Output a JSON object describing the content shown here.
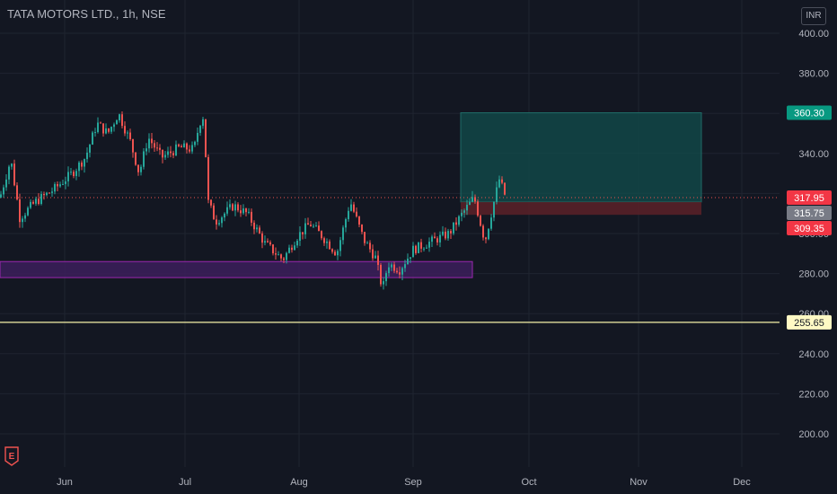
{
  "header": {
    "symbol_title": "TATA MOTORS LTD., 1h, NSE",
    "currency": "INR"
  },
  "logo": {
    "icon": "tradingview-e-logo-icon",
    "letter": "E"
  },
  "colors": {
    "background": "#131722",
    "grid": "#1f2430",
    "up": "#26a69a",
    "down": "#ef5350",
    "target_zone": "#124a4a",
    "stop_zone": "#5c2128",
    "support_zone": "#3c1f5c",
    "support_zone_border": "#9c27b0",
    "horizontal_line": "#f5f1a8"
  },
  "chart_data": {
    "type": "candlestick",
    "y_axis": {
      "range": [
        185,
        410
      ],
      "ticks": [
        200,
        220,
        240,
        260,
        280,
        300,
        320,
        340,
        360,
        380,
        400
      ],
      "tick_labels": [
        "200.00",
        "220.00",
        "240.00",
        "260.00",
        "280.00",
        "300.00",
        "320.00",
        "340.00",
        "360.00",
        "380.00",
        "400.00"
      ]
    },
    "x_axis": {
      "labels": [
        "Jun",
        "Jul",
        "Aug",
        "Sep",
        "Oct",
        "Nov",
        "Dec"
      ]
    },
    "price_path": [
      [
        0,
        318
      ],
      [
        12,
        337
      ],
      [
        22,
        308
      ],
      [
        40,
        316
      ],
      [
        60,
        322
      ],
      [
        80,
        330
      ],
      [
        95,
        338
      ],
      [
        108,
        355
      ],
      [
        120,
        350
      ],
      [
        132,
        360
      ],
      [
        145,
        346
      ],
      [
        155,
        330
      ],
      [
        165,
        348
      ],
      [
        180,
        338
      ],
      [
        200,
        343
      ],
      [
        216,
        342
      ],
      [
        222,
        355
      ],
      [
        228,
        360
      ],
      [
        230,
        318
      ],
      [
        240,
        306
      ],
      [
        260,
        314
      ],
      [
        275,
        310
      ],
      [
        295,
        295
      ],
      [
        315,
        287
      ],
      [
        330,
        298
      ],
      [
        345,
        305
      ],
      [
        360,
        298
      ],
      [
        375,
        290
      ],
      [
        390,
        316
      ],
      [
        405,
        297
      ],
      [
        418,
        288
      ],
      [
        426,
        272
      ],
      [
        432,
        285
      ],
      [
        445,
        282
      ],
      [
        460,
        292
      ],
      [
        480,
        296
      ],
      [
        500,
        300
      ],
      [
        515,
        310
      ],
      [
        528,
        318
      ],
      [
        540,
        296
      ],
      [
        548,
        312
      ],
      [
        556,
        327
      ],
      [
        564,
        317
      ]
    ],
    "annotations": {
      "long_position": {
        "entry": 315.75,
        "target": 360.3,
        "stop": 309.35
      },
      "support_zone": {
        "low": 278,
        "high": 286
      },
      "horizontal_line": 255.65,
      "last_price": 317.95
    },
    "price_labels": {
      "target": "360.30",
      "last": "317.95",
      "entry": "315.75",
      "stop": "309.35",
      "line": "255.65"
    }
  }
}
